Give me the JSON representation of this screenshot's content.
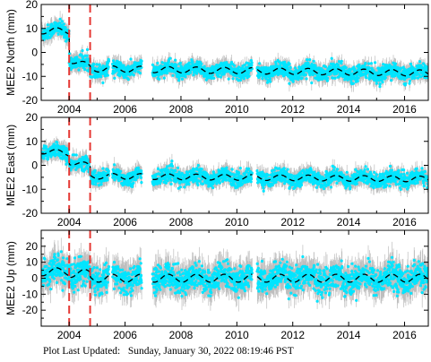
{
  "chart_data": [
    {
      "type": "scatter",
      "ylabel": "MEE2 North (mm)",
      "ylim": [
        -20,
        20
      ],
      "yticks": [
        -20,
        -10,
        0,
        10,
        20
      ],
      "xlim": [
        2003.0,
        2016.85
      ],
      "xticks": [
        2004,
        2006,
        2008,
        2010,
        2012,
        2014,
        2016
      ],
      "events": [
        2004.0,
        2004.75
      ],
      "gaps": [
        [
          2005.42,
          2005.55
        ],
        [
          2006.6,
          2006.98
        ],
        [
          2010.55,
          2010.72
        ]
      ],
      "model": {
        "segments": [
          {
            "t0": 2003.0,
            "t1": 2004.0,
            "a": 9.0,
            "b": 0.0
          },
          {
            "t0": 2004.0,
            "t1": 2004.75,
            "a": -3.0,
            "b": -4.0
          },
          {
            "t0": 2004.75,
            "t1": 2016.85,
            "a": -6.8,
            "b": -0.15
          }
        ],
        "seasonal_amp": 1.3,
        "scatter_sd": 1.5,
        "error_bar": 2.5
      },
      "grid": false
    },
    {
      "type": "scatter",
      "ylabel": "MEE2 East (mm)",
      "ylim": [
        -20,
        20
      ],
      "yticks": [
        -20,
        -10,
        0,
        10,
        20
      ],
      "xlim": [
        2003.0,
        2016.85
      ],
      "xticks": [
        2004,
        2006,
        2008,
        2010,
        2012,
        2014,
        2016
      ],
      "events": [
        2004.0,
        2004.75
      ],
      "gaps": [
        [
          2005.42,
          2005.55
        ],
        [
          2006.6,
          2006.98
        ],
        [
          2010.55,
          2010.72
        ]
      ],
      "model": {
        "segments": [
          {
            "t0": 2003.0,
            "t1": 2004.0,
            "a": 6.0,
            "b": -1.0
          },
          {
            "t0": 2004.0,
            "t1": 2004.75,
            "a": 1.5,
            "b": -2.5
          },
          {
            "t0": 2004.75,
            "t1": 2016.85,
            "a": -4.5,
            "b": -0.1
          }
        ],
        "seasonal_amp": 1.2,
        "scatter_sd": 1.5,
        "error_bar": 2.5
      },
      "grid": false
    },
    {
      "type": "scatter",
      "ylabel": "MEE2 Up (mm)",
      "ylim": [
        -30,
        30
      ],
      "yticks": [
        -20,
        -10,
        0,
        10,
        20
      ],
      "xlim": [
        2003.0,
        2016.85
      ],
      "xticks": [
        2004,
        2006,
        2008,
        2010,
        2012,
        2014,
        2016
      ],
      "events": [
        2004.0,
        2004.75
      ],
      "gaps": [
        [
          2005.42,
          2005.55
        ],
        [
          2006.6,
          2006.98
        ],
        [
          2010.55,
          2010.72
        ]
      ],
      "model": {
        "segments": [
          {
            "t0": 2003.0,
            "t1": 2004.0,
            "a": 4.0,
            "b": 0.0
          },
          {
            "t0": 2004.0,
            "t1": 2004.75,
            "a": 3.0,
            "b": 0.0
          },
          {
            "t0": 2004.75,
            "t1": 2016.85,
            "a": 0.0,
            "b": 0.0
          }
        ],
        "seasonal_amp": 2.5,
        "scatter_sd": 4.0,
        "error_bar": 7.0
      },
      "grid": false
    }
  ],
  "colors": {
    "points": "#00e5ff",
    "error_bars": "#b3b3b3",
    "model_line": "#000000",
    "event_lines": "#e53935"
  },
  "footer": {
    "label": "Plot Last Updated:",
    "timestamp": "Sunday, January 30, 2022 08:19:46 PST"
  }
}
